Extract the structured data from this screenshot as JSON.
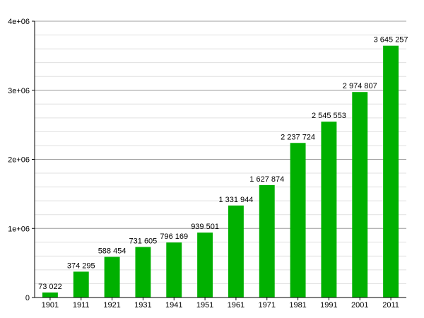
{
  "chart_data": {
    "type": "bar",
    "categories": [
      "1901",
      "1911",
      "1921",
      "1931",
      "1941",
      "1951",
      "1961",
      "1971",
      "1981",
      "1991",
      "2001",
      "2011"
    ],
    "values": [
      73022,
      374295,
      588454,
      731605,
      796169,
      939501,
      1331944,
      1627874,
      2237724,
      2545553,
      2974807,
      3645257
    ],
    "value_labels": [
      "73 022",
      "374 295",
      "588 454",
      "731 605",
      "796 169",
      "939 501",
      "1 331 944",
      "1 627 874",
      "2 237 724",
      "2 545 553",
      "2 974 807",
      "3 645 257"
    ],
    "ylim": [
      0,
      4000000
    ],
    "yticks": [
      0,
      1000000,
      2000000,
      3000000,
      4000000
    ],
    "ytick_labels": [
      "0",
      "1e+06",
      "2e+06",
      "3e+06",
      "4e+06"
    ],
    "grid": true,
    "bar_color": "#00b000",
    "grid_major_color": "#a0a0a0",
    "grid_minor_color": "#e0e0e0"
  }
}
